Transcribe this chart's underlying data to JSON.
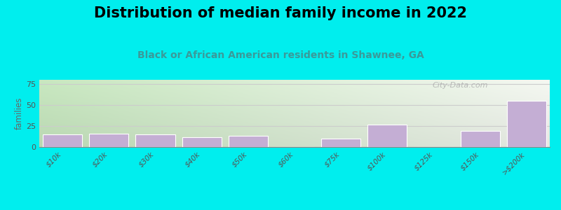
{
  "title": "Distribution of median family income in 2022",
  "subtitle": "Black or African American residents in Shawnee, GA",
  "categories": [
    "$10k",
    "$20k",
    "$30k",
    "$40k",
    "$50k",
    "$60k",
    "$75k",
    "$100k",
    "$125k",
    "$150k",
    ">$200k"
  ],
  "values": [
    15,
    16,
    15,
    12,
    13,
    0,
    10,
    27,
    0,
    19,
    55
  ],
  "bar_color": "#c4aed4",
  "bar_edge_color": "#ffffff",
  "ylabel": "families",
  "ylim": [
    0,
    80
  ],
  "yticks": [
    0,
    25,
    50,
    75
  ],
  "background_color": "#00eeee",
  "title_fontsize": 15,
  "subtitle_fontsize": 10,
  "subtitle_color": "#3a9a9a",
  "watermark": "City-Data.com",
  "grid_color": "#cccccc",
  "title_color": "#000000",
  "plot_grad_left": "#c8e8c0",
  "plot_grad_right": "#f5f8f0"
}
